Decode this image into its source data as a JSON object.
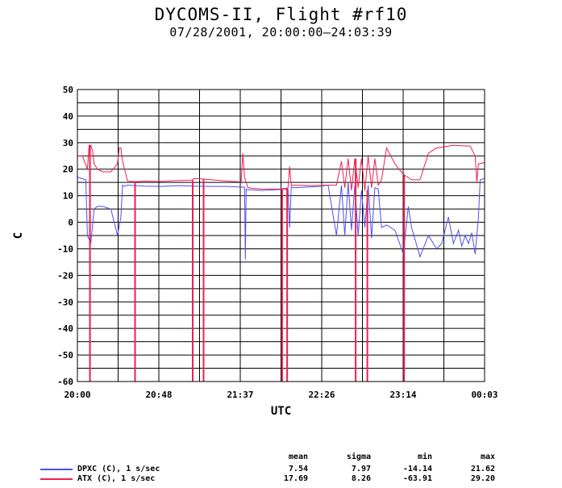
{
  "title": "DYCOMS-II, Flight #rf10",
  "subtitle": "07/28/2001, 20:00:00–24:03:39",
  "chart_data": {
    "type": "line",
    "xlabel": "UTC",
    "ylabel": "C",
    "ylim": [
      -60,
      50
    ],
    "yticks": [
      "50",
      "40",
      "30",
      "20",
      "10",
      "0",
      "-10",
      "-20",
      "-30",
      "-40",
      "-50",
      "-60"
    ],
    "xlim": [
      0,
      243.65
    ],
    "xtick_positions": [
      0,
      48.73,
      97.46,
      146.19,
      194.92,
      243.65
    ],
    "xticks": [
      "20:00",
      "20:48",
      "21:37",
      "22:26",
      "23:14",
      "00:03"
    ],
    "grid": true,
    "series": [
      {
        "name": "DPXC (C), 1 s/sec",
        "color": "#4f4fef",
        "x": [
          0,
          5,
          6,
          8,
          10,
          12,
          15,
          20,
          24,
          26,
          27,
          28,
          30,
          35,
          40,
          50,
          60,
          70,
          80,
          90,
          100,
          100.5,
          101,
          102,
          103,
          104,
          110,
          120,
          126,
          127,
          128,
          129,
          130,
          135,
          145,
          150,
          155,
          158,
          160,
          162,
          164,
          166,
          168,
          170,
          172,
          174,
          176,
          178,
          180,
          182,
          185,
          190,
          195,
          198,
          200,
          205,
          210,
          215,
          218,
          220,
          222,
          225,
          228,
          230,
          232,
          234,
          236,
          238,
          240,
          241,
          243.65
        ],
        "y": [
          17,
          16,
          -5,
          -8,
          5,
          6,
          6,
          5,
          -5,
          2,
          14,
          13.5,
          14,
          13.8,
          13.6,
          13.5,
          13.8,
          13.6,
          13.5,
          13.5,
          13.2,
          -14,
          12.5,
          12.2,
          12.3,
          12.2,
          12,
          12.3,
          12.5,
          -2,
          13.5,
          13,
          13,
          13.2,
          13.5,
          14,
          -5,
          14,
          -5,
          15,
          -3,
          14,
          -5,
          12,
          -2,
          14,
          -6,
          13,
          12.5,
          -2,
          -1,
          -3,
          -12,
          6,
          -2,
          -13,
          -5,
          -10,
          -8,
          -3,
          2,
          -8,
          -3,
          -9,
          -5,
          -8,
          -4,
          -12,
          2,
          16,
          16.5
        ]
      },
      {
        "name": "ATX (C), 1 s/sec",
        "color": "#ef1f4f",
        "x": [
          0,
          3,
          6,
          7,
          8,
          9,
          10,
          12,
          15,
          20,
          24,
          25,
          26,
          27,
          30,
          35,
          40,
          50,
          60,
          68,
          70,
          74,
          75,
          80,
          90,
          98,
          99,
          100,
          102,
          103,
          104,
          110,
          120,
          122,
          125,
          126,
          127,
          128,
          130,
          140,
          150,
          155,
          158,
          160,
          162,
          164,
          166,
          168,
          170,
          172,
          174,
          176,
          178,
          180,
          182,
          185,
          190,
          195,
          200,
          205,
          210,
          215,
          220,
          225,
          230,
          235,
          238,
          239,
          240,
          243.65
        ],
        "y": [
          25,
          25,
          20,
          29,
          29,
          27,
          22,
          20,
          19,
          19,
          22,
          28,
          28,
          23,
          15.5,
          15.3,
          15.5,
          15.4,
          15.7,
          15.8,
          16.5,
          16.4,
          16.3,
          16,
          15.5,
          15.2,
          26,
          17,
          13,
          13,
          12.8,
          12.5,
          12.5,
          12.6,
          12.8,
          13,
          21,
          14,
          14,
          13.8,
          14,
          14,
          23,
          13,
          24,
          12,
          24,
          13,
          24,
          12,
          25,
          13,
          24,
          14,
          16,
          28,
          22,
          18,
          16,
          16,
          26,
          28,
          28.5,
          29,
          28.8,
          28.7,
          25,
          15,
          22,
          22.5
        ]
      }
    ],
    "spikes": [
      {
        "series": "ATX (C), 1 s/sec",
        "x": 7.5,
        "y": -60
      },
      {
        "series": "ATX (C), 1 s/sec",
        "x": 34.5,
        "y": -60
      },
      {
        "series": "ATX (C), 1 s/sec",
        "x": 69,
        "y": -60
      },
      {
        "series": "ATX (C), 1 s/sec",
        "x": 75.5,
        "y": -60
      },
      {
        "series": "ATX (C), 1 s/sec",
        "x": 122.5,
        "y": -60
      },
      {
        "series": "ATX (C), 1 s/sec",
        "x": 125.5,
        "y": -60
      },
      {
        "series": "ATX (C), 1 s/sec",
        "x": 166.5,
        "y": -60
      },
      {
        "series": "ATX (C), 1 s/sec",
        "x": 173.5,
        "y": -60
      },
      {
        "series": "ATX (C), 1 s/sec",
        "x": 195.5,
        "y": -60
      }
    ]
  },
  "stats": {
    "headers": [
      "mean",
      "sigma",
      "min",
      "max"
    ],
    "rows": [
      {
        "label": "DPXC (C), 1 s/sec",
        "color": "#4f4fef",
        "values": [
          "7.54",
          "7.97",
          "-14.14",
          "21.62"
        ]
      },
      {
        "label": "ATX (C), 1 s/sec",
        "color": "#ef1f4f",
        "values": [
          "17.69",
          "8.26",
          "-63.91",
          "29.20"
        ]
      }
    ]
  }
}
